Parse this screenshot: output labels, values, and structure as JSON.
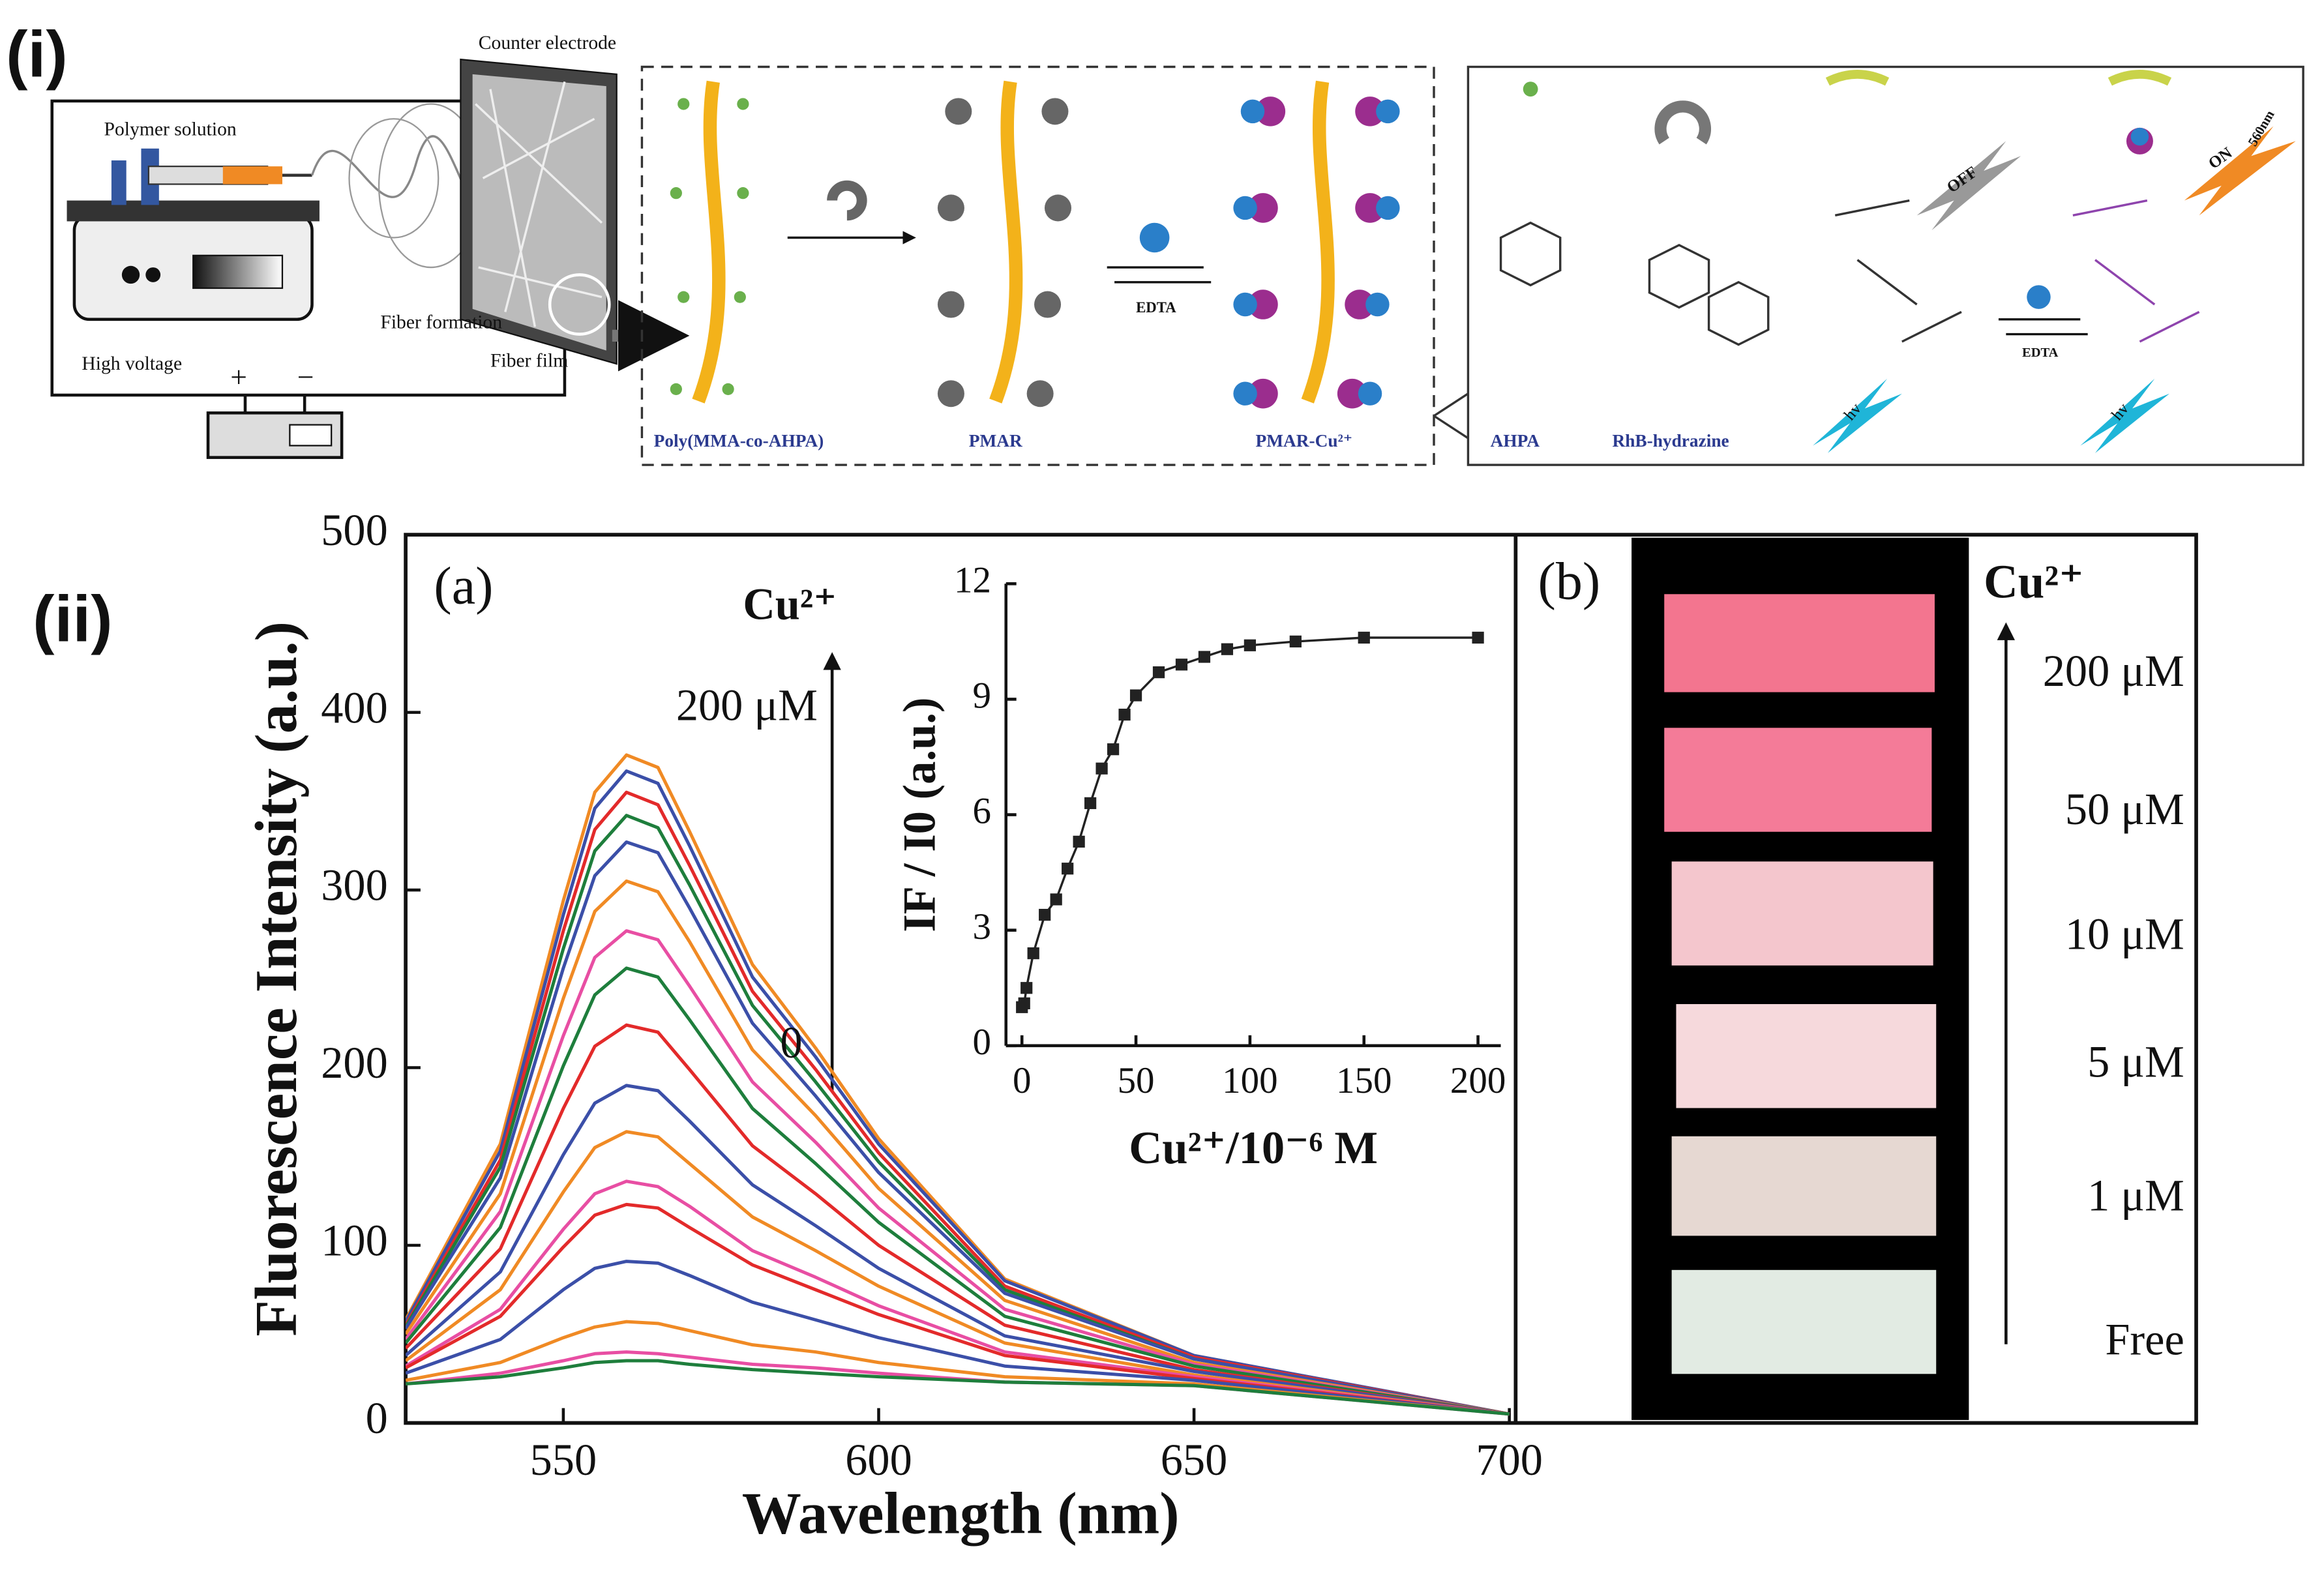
{
  "figure_labels": {
    "part_i": "(i)",
    "part_ii": "(ii)"
  },
  "schematic": {
    "polymer_solution": "Polymer solution",
    "counter_electrode": "Counter electrode",
    "fiber_formation": "Fiber formation",
    "fiber_film": "Fiber film",
    "high_voltage": "High voltage",
    "plus": "+",
    "minus": "−",
    "poly": "Poly(MMA-co-AHPA)",
    "pmar": "PMAR",
    "pmar_cu": "PMAR-Cu²⁺",
    "edta_1": "EDTA",
    "ahpa": "AHPA",
    "rhb": "RhB-hydrazine",
    "off": "OFF",
    "on": "ON",
    "wavelength_560": "560nm",
    "hv_1": "hv",
    "hv_2": "hv",
    "edta_2": "EDTA"
  },
  "chart_data": [
    {
      "type": "line",
      "xlabel": "Wavelength (nm)",
      "ylabel": "Fluorescence Intensity (a.u.)",
      "annotations": [
        "(a)",
        "Cu²⁺",
        "200 μM",
        "0"
      ],
      "x": [
        525,
        540,
        550,
        555,
        560,
        565,
        570,
        580,
        590,
        600,
        620,
        650,
        700
      ],
      "xlim": [
        525,
        701
      ],
      "xticks": [
        550,
        600,
        650,
        700
      ],
      "ylim": [
        0,
        500
      ],
      "yticks": [
        0,
        100,
        200,
        300,
        400,
        500
      ],
      "series": [
        {
          "color": "#f08a24",
          "values": [
            58,
            157,
            294,
            355,
            376,
            369,
            333,
            258,
            211,
            160,
            81,
            38,
            5
          ]
        },
        {
          "color": "#3b4fa8",
          "values": [
            57,
            153,
            286,
            346,
            367,
            360,
            325,
            251,
            206,
            157,
            80,
            38,
            5
          ]
        },
        {
          "color": "#e32a2a",
          "values": [
            55,
            148,
            277,
            334,
            355,
            348,
            314,
            243,
            199,
            152,
            77,
            37,
            5
          ]
        },
        {
          "color": "#1e7e3c",
          "values": [
            54,
            144,
            267,
            322,
            342,
            335,
            303,
            235,
            192,
            147,
            75,
            36,
            5
          ]
        },
        {
          "color": "#3b4fa8",
          "values": [
            53,
            138,
            256,
            308,
            327,
            321,
            290,
            225,
            184,
            141,
            73,
            36,
            5
          ]
        },
        {
          "color": "#f08a24",
          "values": [
            50,
            129,
            239,
            288,
            305,
            299,
            271,
            210,
            173,
            132,
            69,
            34,
            5
          ]
        },
        {
          "color": "#e84ea3",
          "values": [
            47,
            119,
            218,
            262,
            277,
            272,
            246,
            192,
            158,
            121,
            64,
            33,
            5
          ]
        },
        {
          "color": "#1e7e3c",
          "values": [
            45,
            110,
            201,
            241,
            256,
            251,
            227,
            177,
            146,
            113,
            60,
            32,
            5
          ]
        },
        {
          "color": "#e32a2a",
          "values": [
            42,
            98,
            177,
            212,
            224,
            220,
            199,
            156,
            129,
            100,
            55,
            30,
            5
          ]
        },
        {
          "color": "#3b4fa8",
          "values": [
            38,
            85,
            151,
            180,
            190,
            187,
            170,
            134,
            111,
            87,
            49,
            29,
            5
          ]
        },
        {
          "color": "#f08a24",
          "values": [
            35,
            75,
            130,
            155,
            164,
            161,
            146,
            116,
            97,
            77,
            45,
            27,
            5
          ]
        },
        {
          "color": "#e84ea3",
          "values": [
            32,
            64,
            109,
            129,
            136,
            133,
            122,
            97,
            82,
            66,
            40,
            26,
            5
          ]
        },
        {
          "color": "#e32a2a",
          "values": [
            31,
            60,
            99,
            117,
            123,
            121,
            110,
            89,
            75,
            61,
            38,
            25,
            5
          ]
        },
        {
          "color": "#3b4fa8",
          "values": [
            28,
            47,
            75,
            87,
            91,
            90,
            83,
            68,
            58,
            48,
            32,
            24,
            5
          ]
        },
        {
          "color": "#f08a24",
          "values": [
            24,
            34,
            48,
            54,
            57,
            56,
            52,
            44,
            40,
            34,
            26,
            22,
            5
          ]
        },
        {
          "color": "#e84ea3",
          "values": [
            22,
            28,
            35,
            39,
            40,
            39,
            37,
            33,
            31,
            28,
            23,
            21,
            5
          ]
        },
        {
          "color": "#1e7e3c",
          "values": [
            22,
            26,
            31,
            34,
            35,
            35,
            33,
            30,
            28,
            26,
            23,
            21,
            5
          ]
        }
      ]
    },
    {
      "type": "line",
      "xlabel": "Cu²⁺/10⁻⁶ M",
      "ylabel": "IF / I0  (a.u.)",
      "x": [
        0,
        1,
        2,
        5,
        10,
        15,
        20,
        25,
        30,
        35,
        40,
        45,
        50,
        60,
        70,
        80,
        90,
        100,
        120,
        150,
        200
      ],
      "values": [
        1.0,
        1.1,
        1.5,
        2.4,
        3.4,
        3.8,
        4.6,
        5.3,
        6.3,
        7.2,
        7.7,
        8.6,
        9.1,
        9.7,
        9.9,
        10.1,
        10.3,
        10.4,
        10.5,
        10.6,
        10.6
      ],
      "color": "#222222",
      "xlim": [
        -7,
        210
      ],
      "xticks": [
        0,
        50,
        100,
        150,
        200
      ],
      "ylim": [
        0,
        12
      ],
      "yticks": [
        0,
        3,
        6,
        9,
        12
      ]
    }
  ],
  "panel_b": {
    "label": "(b)",
    "ion": "Cu²⁺",
    "levels": [
      "200 μM",
      "50 μM",
      "10 μM",
      "5 μM",
      "1 μM",
      "Free"
    ]
  }
}
